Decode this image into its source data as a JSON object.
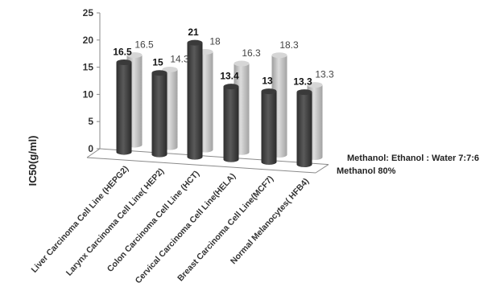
{
  "chart_data": {
    "type": "bar",
    "style": "3d-cylinder",
    "categories": [
      "Liver Carcinoma Cell Line (HEPG2)",
      "Larynx Carcinoma Cell Line( HEP2)",
      "Colon Carcinoma Cell Line (HCT)",
      "Cervical Carcinoma Cell Line(HELA)",
      "Breast Carcinoma Cell Line(MCF7)",
      "Normal Melanocytes( HFB4)"
    ],
    "series": [
      {
        "name": "Methanol  80%",
        "color": "#4a4a4a",
        "values": [
          16.5,
          15,
          21,
          13.4,
          13,
          13.3
        ]
      },
      {
        "name": "Methanol: Ethanol : Water 7:7:6",
        "color": "#c2c2c2",
        "values": [
          16.5,
          14.3,
          18,
          16.3,
          18.3,
          13.3
        ]
      }
    ],
    "ylabel": "IC50(g/ml)",
    "yticks": [
      0,
      5,
      10,
      15,
      20,
      25
    ],
    "ylim": [
      0,
      25
    ],
    "grid": false,
    "legend_position": "right"
  }
}
